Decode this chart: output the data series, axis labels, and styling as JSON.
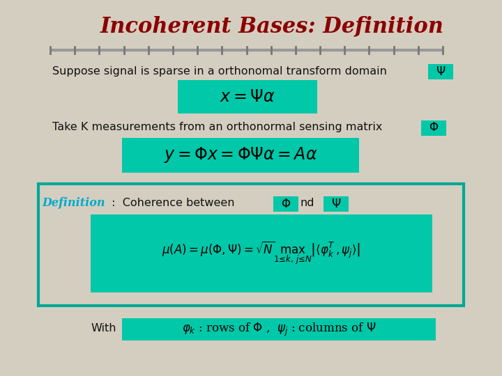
{
  "title": "Incoherent Bases: Definition",
  "title_color": "#8B0000",
  "title_fontsize": 22,
  "bg_color": "#D4CEC0",
  "teal_color": "#00A896",
  "teal_box_bg": "#00C8A8",
  "text_color": "#111111",
  "definition_color": "#00AACC",
  "line_color": "#888888",
  "text1": "Suppose signal is sparse in a orthonomal transform domain",
  "text2": "Take K measurements from an orthonormal sensing matrix",
  "text3_def": "Definition",
  "text3_coher": " :  Coherence between",
  "text_with": "With",
  "formula1": "$x = \\Psi\\alpha$",
  "formula2": "$y = \\Phi x = \\Phi\\Psi\\alpha = A\\alpha$",
  "formula3": "$\\mu(A) = \\mu(\\Phi, \\Psi) = \\sqrt{N} \\max_{1 \\leq k,\\, j \\leq N} \\left| \\langle \\varphi_k^T, \\psi_j \\rangle \\right|$",
  "formula4": "$\\varphi_k$ : rows of $\\Phi$ ,  $\\psi_j$ : columns of $\\Psi$",
  "psi_label": "$\\Psi$",
  "phi_label": "$\\Phi$"
}
